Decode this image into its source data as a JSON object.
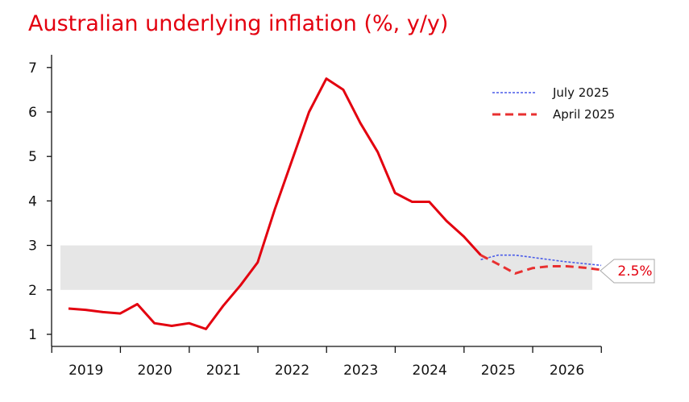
{
  "chart_data": {
    "type": "line",
    "title": "Australian underlying inflation (%, y/y)",
    "xlabel": "",
    "ylabel": "",
    "ylim": [
      0.8,
      7.3
    ],
    "xlim": [
      "2018-12-31",
      "2026-12-31"
    ],
    "yticks": [
      "1",
      "2",
      "3",
      "4",
      "5",
      "6",
      "7"
    ],
    "xticks": [
      "2019",
      "2020",
      "2021",
      "2022",
      "2023",
      "2024",
      "2025",
      "2026"
    ],
    "grid": false,
    "legend_position": "top-right",
    "target_band": [
      2,
      3
    ],
    "target_label": "2.5%",
    "colors": {
      "title": "#e3000f",
      "actual": "#e3000f",
      "july_2025": "#4a5ce8",
      "april_2025": "#e83030",
      "band": "#e6e6e6",
      "target_label": "#e3000f"
    },
    "series": [
      {
        "style": "solid",
        "x": [
          "2019-03-31",
          "2019-06-30",
          "2019-09-30",
          "2019-12-31",
          "2020-03-31",
          "2020-06-30",
          "2020-09-30",
          "2020-12-31",
          "2021-03-31",
          "2021-06-30",
          "2021-09-30",
          "2021-12-31",
          "2022-03-31",
          "2022-06-30",
          "2022-09-30",
          "2022-12-31",
          "2023-03-31",
          "2023-06-30",
          "2023-09-30",
          "2023-12-31",
          "2024-03-31",
          "2024-06-30",
          "2024-09-30",
          "2024-12-31",
          "2025-03-31"
        ],
        "values": [
          1.58,
          1.55,
          1.5,
          1.47,
          1.68,
          1.25,
          1.19,
          1.25,
          1.12,
          1.64,
          2.1,
          2.62,
          3.8,
          4.9,
          6.0,
          6.75,
          6.5,
          5.75,
          5.1,
          4.18,
          3.98,
          3.98,
          3.55,
          3.2,
          2.78
        ]
      },
      {
        "name": "July 2025",
        "style": "dotted",
        "x": [
          "2025-03-31",
          "2025-06-30",
          "2025-09-30",
          "2025-12-31",
          "2026-03-31",
          "2026-06-30",
          "2026-09-30",
          "2026-12-31"
        ],
        "values": [
          2.68,
          2.78,
          2.78,
          2.73,
          2.68,
          2.63,
          2.59,
          2.55
        ]
      },
      {
        "name": "April 2025",
        "style": "dashed",
        "x": [
          "2025-03-31",
          "2025-06-30",
          "2025-09-30",
          "2025-12-31",
          "2026-03-31",
          "2026-06-30",
          "2026-09-30",
          "2026-12-31"
        ],
        "values": [
          2.78,
          2.58,
          2.37,
          2.49,
          2.53,
          2.53,
          2.5,
          2.45
        ]
      }
    ]
  }
}
